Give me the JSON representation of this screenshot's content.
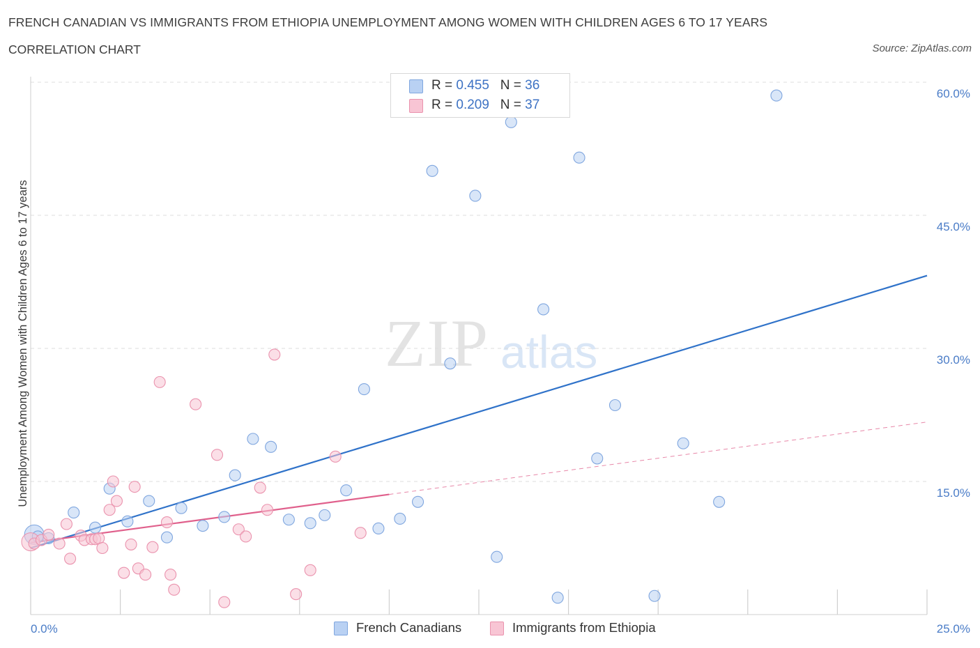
{
  "header": {
    "title": "FRENCH CANADIAN VS IMMIGRANTS FROM ETHIOPIA UNEMPLOYMENT AMONG WOMEN WITH CHILDREN AGES 6 TO 17 YEARS",
    "subtitle": "CORRELATION CHART",
    "source": "Source: ZipAtlas.com"
  },
  "colors": {
    "blue_fill": "#b9d1f3",
    "blue_stroke": "#7fa6df",
    "blue_line": "#2f72c9",
    "pink_fill": "#f8c5d4",
    "pink_stroke": "#ea92ad",
    "pink_line": "#e0608c",
    "axis_label": "#4a7cc7",
    "grid": "#dcdcdc"
  },
  "legend": {
    "rows": [
      {
        "r_label": "R = ",
        "r_value": "0.455",
        "n_label": "N = ",
        "n_value": "36"
      },
      {
        "r_label": "R = ",
        "r_value": "0.209",
        "n_label": "N = ",
        "n_value": "37"
      }
    ]
  },
  "bottom_legend": [
    "French Canadians",
    "Immigrants from Ethiopia"
  ],
  "watermark": {
    "zip": "ZIP",
    "atlas": "atlas"
  },
  "chart_data": {
    "type": "scatter",
    "title": "FRENCH CANADIAN VS IMMIGRANTS FROM ETHIOPIA UNEMPLOYMENT AMONG WOMEN WITH CHILDREN AGES 6 TO 17 YEARS",
    "ylabel": "Unemployment Among Women with Children Ages 6 to 17 years",
    "xlabel": "",
    "xlim": [
      0,
      25
    ],
    "ylim": [
      0,
      60
    ],
    "x_tick_labels": [
      "0.0%",
      "25.0%"
    ],
    "y_ticks": [
      15,
      30,
      45,
      60
    ],
    "y_tick_labels": [
      "15.0%",
      "30.0%",
      "45.0%",
      "60.0%"
    ],
    "grid": true,
    "legend_position": "top-center",
    "series": [
      {
        "name": "French Canadians",
        "R": 0.455,
        "N": 36,
        "trend": {
          "x0": 0,
          "y0": 7.5,
          "x1": 25,
          "y1": 38.2,
          "solid_until": 25
        },
        "points": [
          [
            0.2,
            8.8
          ],
          [
            0.5,
            8.6
          ],
          [
            1.2,
            11.5
          ],
          [
            1.8,
            9.8
          ],
          [
            2.2,
            14.2
          ],
          [
            2.7,
            10.5
          ],
          [
            3.3,
            12.8
          ],
          [
            3.8,
            8.7
          ],
          [
            4.2,
            12.0
          ],
          [
            4.8,
            10.0
          ],
          [
            5.4,
            11.0
          ],
          [
            5.7,
            15.7
          ],
          [
            6.2,
            19.8
          ],
          [
            6.7,
            18.9
          ],
          [
            7.2,
            10.7
          ],
          [
            7.8,
            10.3
          ],
          [
            8.2,
            11.2
          ],
          [
            8.8,
            14.0
          ],
          [
            9.3,
            25.4
          ],
          [
            9.7,
            9.7
          ],
          [
            10.3,
            10.8
          ],
          [
            10.8,
            12.7
          ],
          [
            11.2,
            50.0
          ],
          [
            11.7,
            28.3
          ],
          [
            12.4,
            47.2
          ],
          [
            13.0,
            6.5
          ],
          [
            13.4,
            55.5
          ],
          [
            14.3,
            34.4
          ],
          [
            14.7,
            1.9
          ],
          [
            15.3,
            51.5
          ],
          [
            15.8,
            17.6
          ],
          [
            16.3,
            23.6
          ],
          [
            17.4,
            2.1
          ],
          [
            18.2,
            19.3
          ],
          [
            19.2,
            12.7
          ],
          [
            20.8,
            58.5
          ]
        ]
      },
      {
        "name": "Immigrants from Ethiopia",
        "R": 0.209,
        "N": 37,
        "trend": {
          "x0": 0,
          "y0": 8.1,
          "x1": 25,
          "y1": 21.7,
          "solid_until": 10
        },
        "points": [
          [
            0.1,
            8.0
          ],
          [
            0.3,
            8.4
          ],
          [
            0.5,
            9.0
          ],
          [
            0.8,
            8.0
          ],
          [
            1.0,
            10.2
          ],
          [
            1.1,
            6.3
          ],
          [
            1.4,
            8.9
          ],
          [
            1.5,
            8.4
          ],
          [
            1.7,
            8.5
          ],
          [
            1.8,
            8.5
          ],
          [
            1.9,
            8.6
          ],
          [
            2.0,
            7.5
          ],
          [
            2.2,
            11.8
          ],
          [
            2.3,
            15.0
          ],
          [
            2.4,
            12.8
          ],
          [
            2.6,
            4.7
          ],
          [
            2.8,
            7.9
          ],
          [
            2.9,
            14.4
          ],
          [
            3.0,
            5.2
          ],
          [
            3.2,
            4.5
          ],
          [
            3.4,
            7.6
          ],
          [
            3.6,
            26.2
          ],
          [
            3.8,
            10.4
          ],
          [
            3.9,
            4.5
          ],
          [
            4.0,
            2.8
          ],
          [
            4.6,
            23.7
          ],
          [
            5.2,
            18.0
          ],
          [
            5.4,
            1.4
          ],
          [
            5.8,
            9.6
          ],
          [
            6.0,
            8.8
          ],
          [
            6.4,
            14.3
          ],
          [
            6.6,
            11.8
          ],
          [
            6.8,
            29.3
          ],
          [
            7.4,
            2.3
          ],
          [
            7.8,
            5.0
          ],
          [
            8.5,
            17.8
          ],
          [
            9.2,
            9.2
          ]
        ]
      }
    ]
  }
}
